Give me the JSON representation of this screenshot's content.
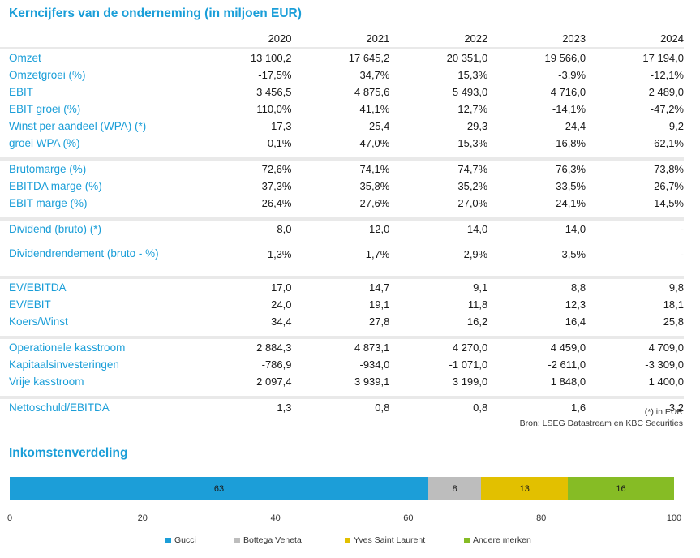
{
  "title": "Kerncijfers van de onderneming (in miljoen EUR)",
  "years": [
    "2020",
    "2021",
    "2022",
    "2023",
    "2024"
  ],
  "groups": [
    [
      {
        "label": "Omzet",
        "values": [
          "13 100,2",
          "17 645,2",
          "20 351,0",
          "19 566,0",
          "17 194,0"
        ]
      },
      {
        "label": "Omzetgroei (%)",
        "values": [
          "-17,5%",
          "34,7%",
          "15,3%",
          "-3,9%",
          "-12,1%"
        ]
      },
      {
        "label": "EBIT",
        "values": [
          "3 456,5",
          "4 875,6",
          "5 493,0",
          "4 716,0",
          "2 489,0"
        ]
      },
      {
        "label": "EBIT groei (%)",
        "values": [
          "110,0%",
          "41,1%",
          "12,7%",
          "-14,1%",
          "-47,2%"
        ]
      },
      {
        "label": "Winst per aandeel (WPA) (*)",
        "values": [
          "17,3",
          "25,4",
          "29,3",
          "24,4",
          "9,2"
        ]
      },
      {
        "label": "groei WPA (%)",
        "values": [
          "0,1%",
          "47,0%",
          "15,3%",
          "-16,8%",
          "-62,1%"
        ]
      }
    ],
    [
      {
        "label": "Brutomarge (%)",
        "values": [
          "72,6%",
          "74,1%",
          "74,7%",
          "76,3%",
          "73,8%"
        ]
      },
      {
        "label": "EBITDA marge (%)",
        "values": [
          "37,3%",
          "35,8%",
          "35,2%",
          "33,5%",
          "26,7%"
        ]
      },
      {
        "label": "EBIT marge (%)",
        "values": [
          "26,4%",
          "27,6%",
          "27,0%",
          "24,1%",
          "14,5%"
        ]
      }
    ],
    [
      {
        "label": "Dividend (bruto) (*)",
        "values": [
          "8,0",
          "12,0",
          "14,0",
          "14,0",
          "-"
        ]
      },
      {
        "label": "Dividendrendement (bruto - %)",
        "values": [
          "1,3%",
          "1,7%",
          "2,9%",
          "3,5%",
          "-"
        ],
        "wrap": true
      }
    ],
    [
      {
        "label": "EV/EBITDA",
        "values": [
          "17,0",
          "14,7",
          "9,1",
          "8,8",
          "9,8"
        ]
      },
      {
        "label": "EV/EBIT",
        "values": [
          "24,0",
          "19,1",
          "11,8",
          "12,3",
          "18,1"
        ]
      },
      {
        "label": "Koers/Winst",
        "values": [
          "34,4",
          "27,8",
          "16,2",
          "16,4",
          "25,8"
        ]
      }
    ],
    [
      {
        "label": "Operationele kasstroom",
        "values": [
          "2 884,3",
          "4 873,1",
          "4 270,0",
          "4 459,0",
          "4 709,0"
        ]
      },
      {
        "label": "Kapitaalsinvesteringen",
        "values": [
          "-786,9",
          "-934,0",
          "-1 071,0",
          "-2 611,0",
          "-3 309,0"
        ]
      },
      {
        "label": "Vrije kasstroom",
        "values": [
          "2 097,4",
          "3 939,1",
          "3 199,0",
          "1 848,0",
          "1 400,0"
        ]
      }
    ],
    [
      {
        "label": "Nettoschuld/EBITDA",
        "values": [
          "1,3",
          "0,8",
          "0,8",
          "1,6",
          "3,2"
        ]
      }
    ]
  ],
  "footnote": "(*) in EUR",
  "source": "Bron: LSEG Datastream en KBC Securities",
  "chart_title": "Inkomstenverdeling",
  "chart_data": {
    "type": "bar",
    "orientation": "horizontal-stacked",
    "title": "Inkomstenverdeling",
    "categories": [
      ""
    ],
    "series": [
      {
        "name": "Gucci",
        "values": [
          63
        ],
        "color": "#1c9ed8"
      },
      {
        "name": "Bottega Veneta",
        "values": [
          8
        ],
        "color": "#bdbdbd"
      },
      {
        "name": "Yves Saint Laurent",
        "values": [
          13
        ],
        "color": "#e2c000"
      },
      {
        "name": "Andere merken",
        "values": [
          16
        ],
        "color": "#86bc25"
      }
    ],
    "xlim": [
      0,
      100
    ],
    "xticks": [
      "0",
      "20",
      "40",
      "60",
      "80",
      "100"
    ],
    "legend": "bottom",
    "grid": false
  }
}
